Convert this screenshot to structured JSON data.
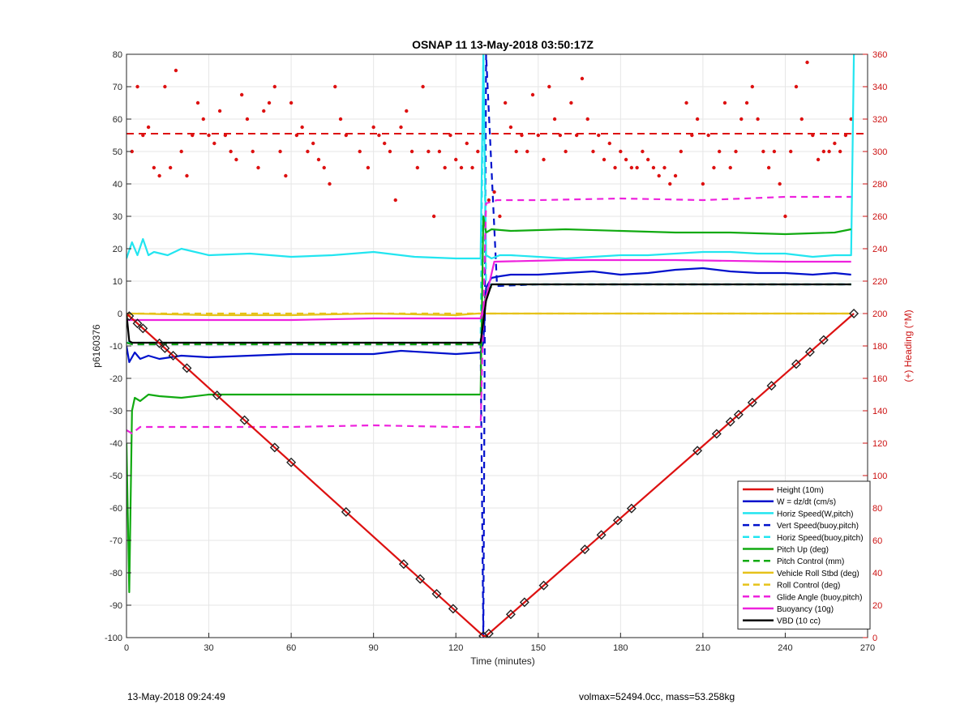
{
  "chart_data": {
    "type": "line",
    "title": "OSNAP 11 13-May-2018 03:50:17Z",
    "xlabel": "Time (minutes)",
    "ylabel": "p6160376",
    "y2label": "(+) Heading (°M)",
    "xlim": [
      0,
      270
    ],
    "ylim": [
      -100,
      80
    ],
    "y2lim": [
      0,
      360
    ],
    "xticks": [
      "0",
      "30",
      "60",
      "90",
      "120",
      "150",
      "180",
      "210",
      "240",
      "270"
    ],
    "yticks": [
      "80",
      "70",
      "60",
      "50",
      "40",
      "30",
      "20",
      "10",
      "0",
      "-10",
      "-20",
      "-30",
      "-40",
      "-50",
      "-60",
      "-70",
      "-80",
      "-90",
      "-100"
    ],
    "y2ticks": [
      "360",
      "340",
      "320",
      "300",
      "280",
      "260",
      "240",
      "220",
      "200",
      "180",
      "160",
      "140",
      "120",
      "100",
      "80",
      "60",
      "40",
      "20",
      "0"
    ],
    "grid": true,
    "legend_position": "bottom-right",
    "heading_target": 311,
    "series": [
      {
        "name": "Height (10m)",
        "color": "#dd1111",
        "style": "solid",
        "x": [
          0,
          130,
          131,
          265
        ],
        "y": [
          0,
          -99.5,
          -99.5,
          0
        ],
        "markers_x": [
          1,
          4,
          6,
          12,
          14,
          17,
          22,
          33,
          43,
          54,
          60,
          80,
          101,
          107,
          113,
          119,
          130,
          132,
          140,
          145,
          152,
          167,
          173,
          179,
          184,
          208,
          215,
          220,
          223,
          228,
          235,
          244,
          249,
          254,
          265
        ]
      },
      {
        "name": "W = dz/dt (cm/s)",
        "color": "#0011cc",
        "style": "solid",
        "x": [
          0,
          1,
          3,
          5,
          8,
          12,
          20,
          30,
          45,
          60,
          75,
          90,
          100,
          110,
          120,
          129,
          130,
          131,
          133,
          136,
          140,
          150,
          160,
          170,
          180,
          190,
          200,
          210,
          220,
          230,
          240,
          250,
          258,
          264
        ],
        "y": [
          -10,
          -15,
          -12,
          -14,
          -13,
          -14,
          -13,
          -13.5,
          -13,
          -12.5,
          -12.5,
          -12.5,
          -11.5,
          -12,
          -12.5,
          -12,
          -9,
          8,
          11,
          11.5,
          12,
          12,
          12.5,
          13,
          12,
          12.5,
          13.5,
          14,
          13,
          12.5,
          12.5,
          12,
          12.5,
          12
        ]
      },
      {
        "name": "Horiz Speed(W,pitch)",
        "color": "#22e5f0",
        "style": "solid",
        "x": [
          0,
          2,
          4,
          6,
          8,
          10,
          15,
          20,
          30,
          45,
          60,
          75,
          90,
          105,
          120,
          129,
          130,
          131,
          133,
          136,
          140,
          150,
          160,
          170,
          180,
          190,
          200,
          210,
          220,
          230,
          240,
          250,
          258,
          264,
          265
        ],
        "y": [
          17,
          22,
          18,
          23,
          18,
          19,
          18,
          20,
          18,
          18.5,
          17.5,
          18,
          19,
          17.5,
          17,
          17,
          80,
          18,
          17,
          18,
          18,
          17.5,
          17,
          17.5,
          18,
          18,
          18.5,
          19,
          19,
          18.5,
          18.5,
          17.5,
          18,
          18,
          80
        ]
      },
      {
        "name": "Vert Speed(buoy,pitch)",
        "color": "#0011cc",
        "style": "dashed",
        "x": [
          0,
          2,
          10,
          30,
          60,
          90,
          120,
          129,
          130,
          131,
          135,
          150,
          180,
          210,
          240,
          264
        ],
        "y": [
          -9,
          -9.5,
          -9.5,
          -9.5,
          -9.5,
          -9.5,
          -9.5,
          -9.5,
          -100,
          80,
          8.5,
          9,
          9,
          9,
          9,
          9
        ]
      },
      {
        "name": "Horiz Speed(buoy,pitch)",
        "color": "#22e5f0",
        "style": "dashed",
        "x": [
          0,
          30,
          60,
          90,
          120,
          129,
          130,
          131,
          150,
          200,
          264
        ],
        "y": [
          -9,
          -9,
          -9,
          -9,
          -9,
          -9,
          80,
          9,
          9,
          9,
          9
        ]
      },
      {
        "name": "Pitch Up (deg)",
        "color": "#11aa11",
        "style": "solid",
        "x": [
          0,
          1,
          2,
          3,
          5,
          8,
          12,
          20,
          30,
          60,
          90,
          120,
          129,
          130,
          131,
          133,
          140,
          160,
          180,
          200,
          220,
          240,
          258,
          264
        ],
        "y": [
          -40,
          -86,
          -30,
          -26,
          -27,
          -25,
          -25.5,
          -26,
          -25,
          -25,
          -25,
          -25,
          -25,
          30,
          25,
          26,
          25.5,
          26,
          25.5,
          25,
          25,
          24.5,
          25,
          26
        ]
      },
      {
        "name": "Pitch Control (mm)",
        "color": "#11aa11",
        "style": "dashed",
        "x": [
          0,
          2,
          30,
          60,
          90,
          120,
          129,
          131,
          134,
          160,
          200,
          240,
          264
        ],
        "y": [
          -9,
          -9.5,
          -9.5,
          -9.5,
          -9.5,
          -9.5,
          -9.5,
          7,
          9,
          9,
          9,
          9,
          9
        ]
      },
      {
        "name": "Vehicle Roll Stbd (deg)",
        "color": "#e6c21a",
        "style": "solid",
        "x": [
          0,
          2,
          30,
          60,
          90,
          120,
          128,
          131,
          140,
          170,
          200,
          230,
          264
        ],
        "y": [
          -1,
          0,
          -0.5,
          -0.5,
          0,
          -0.5,
          0,
          0,
          0,
          0,
          0,
          0,
          0
        ]
      },
      {
        "name": "Roll Control (deg)",
        "color": "#e6c21a",
        "style": "dashed",
        "x": [
          0,
          30,
          60,
          90,
          120,
          130,
          160,
          200,
          264
        ],
        "y": [
          0,
          0,
          0,
          0,
          0,
          0,
          0,
          0,
          0
        ]
      },
      {
        "name": "Glide Angle (buoy,pitch)",
        "color": "#ee22dd",
        "style": "dashed",
        "x": [
          0,
          2,
          5,
          10,
          30,
          60,
          90,
          120,
          129,
          131,
          135,
          150,
          180,
          210,
          240,
          264
        ],
        "y": [
          -36,
          -37,
          -35,
          -35,
          -35,
          -35,
          -34.5,
          -35,
          -35,
          34,
          35,
          35,
          35.5,
          35,
          36,
          36
        ]
      },
      {
        "name": "Buoyancy (10g)",
        "color": "#ee22dd",
        "style": "solid",
        "x": [
          0,
          2,
          30,
          60,
          90,
          129,
          131,
          134,
          160,
          200,
          240,
          264
        ],
        "y": [
          -2,
          -2,
          -2,
          -2,
          -1.5,
          -1.5,
          5,
          16,
          16.5,
          16.5,
          16,
          16
        ]
      },
      {
        "name": "VBD (10 cc)",
        "color": "#000000",
        "style": "solid",
        "x": [
          0,
          1,
          2,
          129,
          131,
          133,
          264
        ],
        "y": [
          0,
          -8.5,
          -9,
          -9,
          4,
          9,
          9
        ]
      }
    ],
    "heading_series": {
      "name": "Heading",
      "color": "#dd1111",
      "style": "dots",
      "x": [
        2,
        4,
        6,
        8,
        10,
        12,
        14,
        16,
        18,
        20,
        22,
        24,
        26,
        28,
        30,
        32,
        34,
        36,
        38,
        40,
        42,
        44,
        46,
        48,
        50,
        52,
        54,
        56,
        58,
        60,
        62,
        64,
        66,
        68,
        70,
        72,
        74,
        76,
        78,
        80,
        85,
        88,
        90,
        92,
        94,
        96,
        98,
        100,
        102,
        104,
        106,
        108,
        110,
        112,
        114,
        116,
        118,
        120,
        122,
        124,
        126,
        128,
        132,
        134,
        136,
        138,
        140,
        142,
        144,
        146,
        148,
        150,
        152,
        154,
        156,
        158,
        160,
        162,
        164,
        166,
        168,
        170,
        172,
        174,
        176,
        178,
        180,
        182,
        184,
        186,
        188,
        190,
        192,
        194,
        196,
        198,
        200,
        202,
        204,
        206,
        208,
        210,
        212,
        214,
        216,
        218,
        220,
        222,
        224,
        226,
        228,
        230,
        232,
        234,
        236,
        238,
        240,
        242,
        244,
        246,
        248,
        250,
        252,
        254,
        256,
        258,
        260,
        262,
        264
      ],
      "y": [
        300,
        340,
        310,
        315,
        290,
        285,
        340,
        290,
        350,
        300,
        285,
        310,
        330,
        320,
        310,
        305,
        325,
        310,
        300,
        295,
        335,
        320,
        300,
        290,
        325,
        330,
        340,
        300,
        285,
        330,
        310,
        315,
        300,
        305,
        295,
        290,
        280,
        340,
        320,
        310,
        300,
        290,
        315,
        310,
        305,
        300,
        270,
        315,
        325,
        300,
        290,
        340,
        300,
        260,
        300,
        290,
        310,
        295,
        290,
        305,
        290,
        300,
        270,
        275,
        260,
        330,
        315,
        300,
        310,
        300,
        335,
        310,
        295,
        340,
        320,
        310,
        300,
        330,
        310,
        345,
        320,
        300,
        310,
        295,
        305,
        290,
        300,
        295,
        290,
        290,
        300,
        295,
        290,
        285,
        290,
        280,
        285,
        300,
        330,
        310,
        320,
        280,
        310,
        290,
        300,
        330,
        290,
        300,
        320,
        330,
        340,
        320,
        300,
        290,
        300,
        280,
        260,
        300,
        340,
        320,
        355,
        310,
        295,
        300,
        300,
        305,
        300,
        310,
        320
      ]
    }
  },
  "footer": {
    "left_text": "13-May-2018 09:24:49",
    "right_text": "volmax=52494.0cc, mass=53.258kg"
  }
}
